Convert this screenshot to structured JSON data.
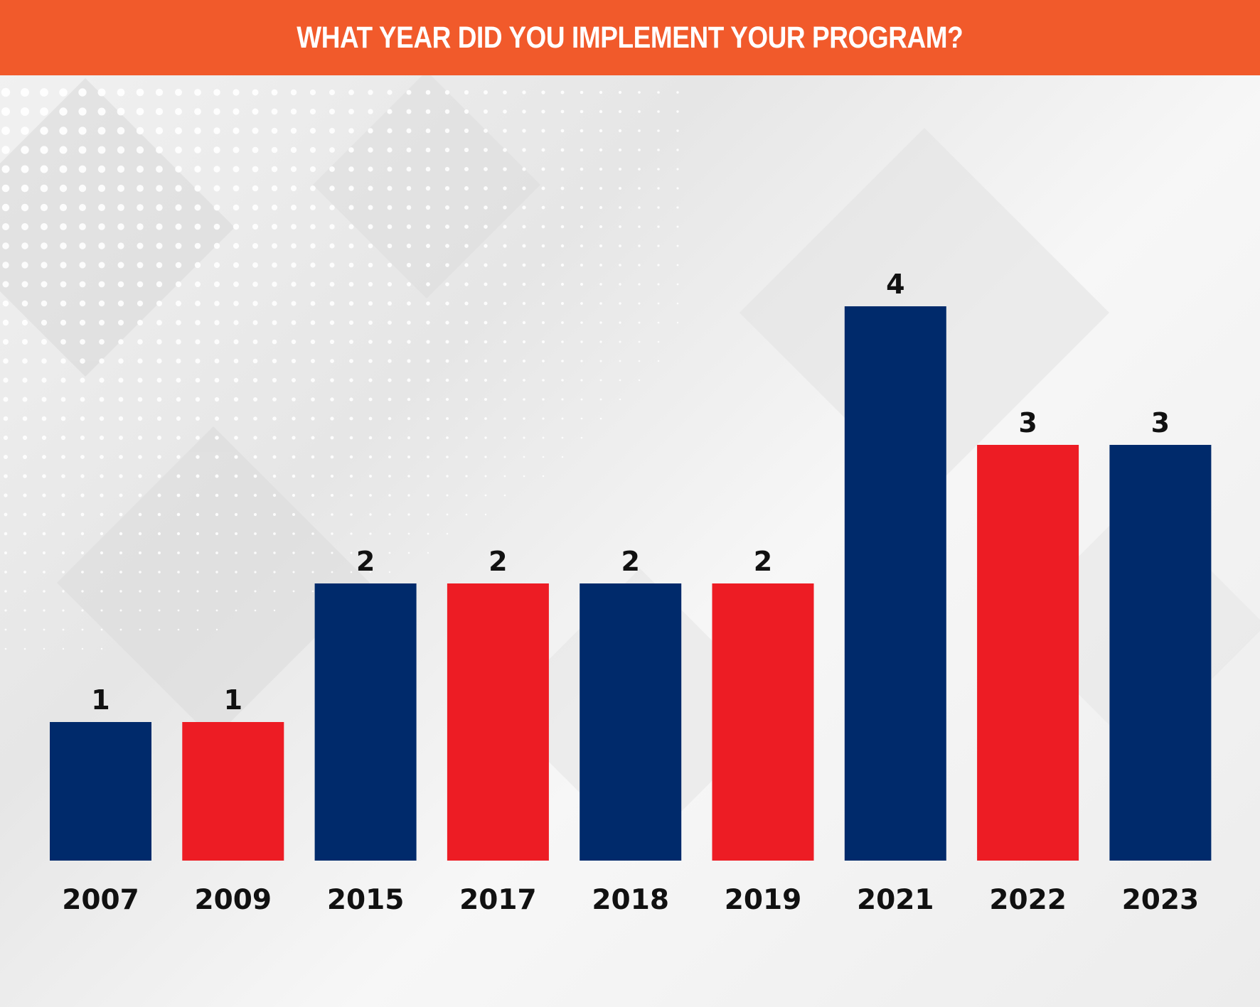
{
  "chart_data": {
    "type": "bar",
    "title": "WHAT YEAR DID YOU IMPLEMENT YOUR PROGRAM?",
    "categories": [
      "2007",
      "2009",
      "2015",
      "2017",
      "2018",
      "2019",
      "2021",
      "2022",
      "2023"
    ],
    "values": [
      1,
      1,
      2,
      2,
      2,
      2,
      4,
      3,
      3
    ],
    "ylim": [
      0,
      4
    ],
    "colors": [
      "#002a6b",
      "#ed1c24",
      "#002a6b",
      "#ed1c24",
      "#002a6b",
      "#ed1c24",
      "#002a6b",
      "#ed1c24",
      "#002a6b"
    ],
    "header_color": "#f15a2b",
    "grid": false,
    "legend": "none"
  }
}
